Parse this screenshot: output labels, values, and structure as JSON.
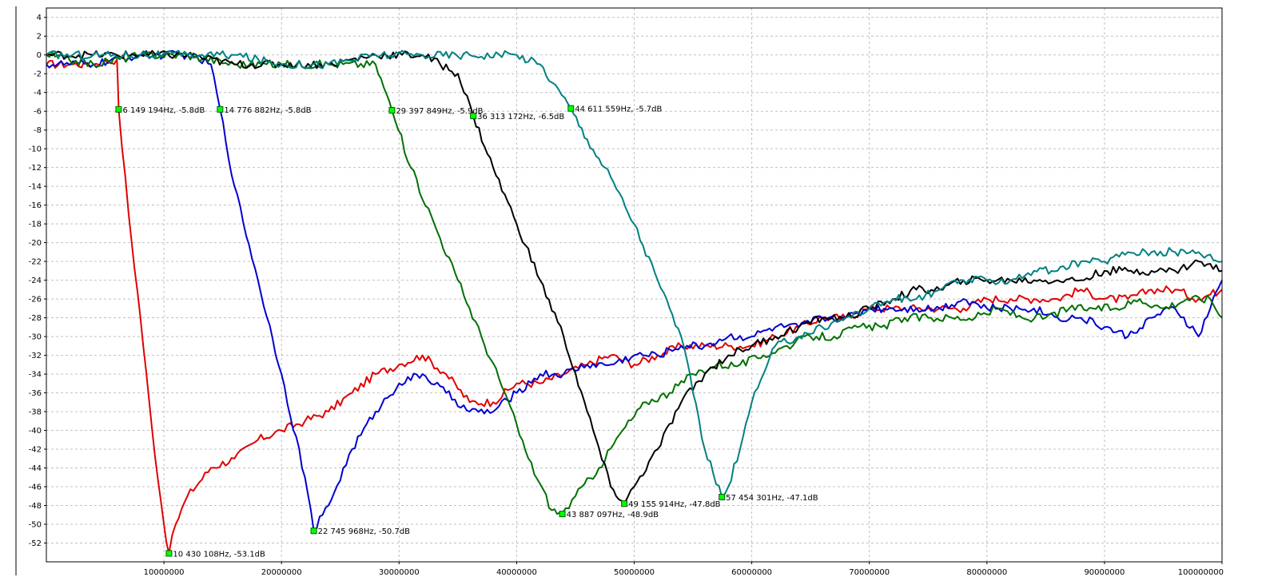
{
  "chart_data": {
    "type": "line",
    "title": "",
    "xlabel": "",
    "ylabel": "",
    "xlim": [
      0,
      100000000
    ],
    "ylim": [
      -54,
      5
    ],
    "grid": true,
    "x_ticks": [
      10000000,
      20000000,
      30000000,
      40000000,
      50000000,
      60000000,
      70000000,
      80000000,
      90000000,
      100000000
    ],
    "x_tick_labels": [
      "10000000",
      "20000000",
      "30000000",
      "40000000",
      "50000000",
      "60000000",
      "70000000",
      "80000000",
      "90000000",
      "100000000"
    ],
    "y_ticks": [
      4,
      2,
      0,
      -2,
      -4,
      -6,
      -8,
      -10,
      -12,
      -14,
      -16,
      -18,
      -20,
      -22,
      -24,
      -26,
      -28,
      -30,
      -32,
      -34,
      -36,
      -38,
      -40,
      -42,
      -44,
      -46,
      -48,
      -50,
      -52
    ],
    "series": [
      {
        "color": "#e00000",
        "x": [
          0,
          2000000,
          4000000,
          6000000,
          6149194,
          7000000,
          8000000,
          9000000,
          10000000,
          10430108,
          11000000,
          12000000,
          14000000,
          16000000,
          18000000,
          20000000,
          22000000,
          24000000,
          26000000,
          28000000,
          30000000,
          32000000,
          34000000,
          36000000,
          38000000,
          40000000,
          42000000,
          44000000,
          46000000,
          48000000,
          50000000,
          52000000,
          54000000,
          56000000,
          58000000,
          60000000,
          62000000,
          64000000,
          66000000,
          68000000,
          70000000,
          72000000,
          74000000,
          76000000,
          78000000,
          80000000,
          82000000,
          84000000,
          86000000,
          88000000,
          90000000,
          92000000,
          94000000,
          96000000,
          98000000,
          100000000
        ],
        "y": [
          -1,
          -1,
          -1,
          -0.5,
          -5.8,
          -17,
          -28,
          -40,
          -50,
          -53.1,
          -50,
          -47,
          -44,
          -43,
          -41,
          -40,
          -39,
          -38,
          -36,
          -34,
          -33,
          -32,
          -34,
          -37,
          -37,
          -35,
          -35,
          -34,
          -33,
          -32,
          -33,
          -32,
          -31,
          -31,
          -31,
          -31,
          -30,
          -29,
          -28,
          -28,
          -27,
          -27,
          -27,
          -27,
          -27,
          -26,
          -26,
          -26,
          -26,
          -25,
          -26,
          -26,
          -25,
          -25,
          -26,
          -25
        ]
      },
      {
        "color": "#0000d0",
        "x": [
          0,
          4000000,
          8000000,
          12000000,
          14000000,
          14776882,
          16000000,
          18000000,
          20000000,
          22000000,
          22745968,
          24000000,
          26000000,
          28000000,
          30000000,
          32000000,
          34000000,
          36000000,
          38000000,
          40000000,
          42000000,
          44000000,
          46000000,
          48000000,
          50000000,
          52000000,
          54000000,
          56000000,
          58000000,
          60000000,
          62000000,
          64000000,
          66000000,
          68000000,
          70000000,
          72000000,
          74000000,
          76000000,
          78000000,
          80000000,
          82000000,
          84000000,
          86000000,
          88000000,
          90000000,
          92000000,
          94000000,
          96000000,
          98000000,
          100000000
        ],
        "y": [
          -1,
          -1,
          0,
          0,
          -1,
          -5.8,
          -14,
          -24,
          -34,
          -45,
          -50.7,
          -48,
          -42,
          -38,
          -35,
          -34,
          -36,
          -38,
          -38,
          -36,
          -34,
          -34,
          -33,
          -33,
          -32,
          -32,
          -31,
          -31,
          -30,
          -30,
          -29,
          -29,
          -28,
          -28,
          -27,
          -27,
          -27,
          -27,
          -26,
          -27,
          -27,
          -27,
          -28,
          -28,
          -29,
          -30,
          -28,
          -27,
          -30,
          -24
        ]
      },
      {
        "color": "#007000",
        "x": [
          0,
          4000000,
          8000000,
          12000000,
          16000000,
          20000000,
          24000000,
          28000000,
          29397849,
          31000000,
          33000000,
          35000000,
          37000000,
          39000000,
          41000000,
          43000000,
          43887097,
          45000000,
          47000000,
          49000000,
          51000000,
          53000000,
          55000000,
          57000000,
          59000000,
          61000000,
          63000000,
          65000000,
          67000000,
          69000000,
          71000000,
          73000000,
          75000000,
          77000000,
          79000000,
          81000000,
          83000000,
          85000000,
          87000000,
          89000000,
          91000000,
          93000000,
          95000000,
          97000000,
          99000000,
          100000000
        ],
        "y": [
          0,
          -1,
          0,
          0,
          -1,
          -1,
          -1,
          -1,
          -5.9,
          -12,
          -18,
          -24,
          -30,
          -36,
          -43,
          -48.5,
          -48.9,
          -47,
          -44,
          -40,
          -37,
          -36,
          -34,
          -33,
          -33,
          -32,
          -31,
          -30,
          -30,
          -29,
          -29,
          -28,
          -28,
          -28,
          -28,
          -27,
          -28,
          -28,
          -27,
          -27,
          -27,
          -26,
          -27,
          -26,
          -26,
          -28
        ]
      },
      {
        "color": "#000000",
        "x": [
          0,
          4000000,
          8000000,
          12000000,
          16000000,
          20000000,
          24000000,
          28000000,
          32000000,
          35000000,
          36313172,
          38000000,
          40000000,
          42000000,
          44000000,
          46000000,
          48000000,
          49155914,
          50000000,
          52000000,
          54000000,
          56000000,
          58000000,
          60000000,
          62000000,
          64000000,
          66000000,
          68000000,
          70000000,
          72000000,
          74000000,
          76000000,
          78000000,
          80000000,
          82000000,
          84000000,
          86000000,
          88000000,
          90000000,
          92000000,
          94000000,
          96000000,
          98000000,
          100000000
        ],
        "y": [
          0,
          0,
          0,
          0,
          -1,
          -1,
          -1,
          0,
          0,
          -2,
          -6.5,
          -12,
          -18,
          -24,
          -30,
          -38,
          -46,
          -47.8,
          -46,
          -42,
          -37,
          -34,
          -32,
          -31,
          -30,
          -29,
          -28,
          -28,
          -27,
          -26,
          -25,
          -25,
          -24,
          -24,
          -24,
          -24,
          -24,
          -24,
          -23,
          -23,
          -23,
          -23,
          -22,
          -23
        ]
      },
      {
        "color": "#008080",
        "x": [
          0,
          4000000,
          8000000,
          12000000,
          16000000,
          20000000,
          24000000,
          28000000,
          32000000,
          36000000,
          40000000,
          42000000,
          44611559,
          46000000,
          48000000,
          50000000,
          52000000,
          54000000,
          55000000,
          56000000,
          57454301,
          58000000,
          59000000,
          60000000,
          61000000,
          62000000,
          64000000,
          66000000,
          68000000,
          70000000,
          72000000,
          74000000,
          76000000,
          78000000,
          80000000,
          82000000,
          84000000,
          86000000,
          88000000,
          90000000,
          92000000,
          94000000,
          96000000,
          98000000,
          100000000
        ],
        "y": [
          0,
          0,
          0,
          0,
          0,
          -1,
          -1,
          0,
          0,
          0,
          0,
          -1,
          -5.7,
          -9,
          -13,
          -18,
          -24,
          -30,
          -36,
          -42,
          -47.1,
          -46,
          -42,
          -37,
          -34,
          -31,
          -30,
          -29,
          -28,
          -27,
          -26,
          -26,
          -25,
          -24,
          -24,
          -24,
          -23,
          -23,
          -22,
          -22,
          -21,
          -21,
          -21,
          -21,
          -22
        ]
      }
    ],
    "markers": [
      {
        "x": 6149194,
        "y": -5.8,
        "label": "6 149 194Hz, -5.8dB"
      },
      {
        "x": 14776882,
        "y": -5.8,
        "label": "14 776 882Hz, -5.8dB"
      },
      {
        "x": 29397849,
        "y": -5.9,
        "label": "29 397 849Hz, -5.9dB"
      },
      {
        "x": 36313172,
        "y": -6.5,
        "label": "36 313 172Hz, -6.5dB"
      },
      {
        "x": 44611559,
        "y": -5.7,
        "label": "44 611 559Hz, -5.7dB"
      },
      {
        "x": 10430108,
        "y": -53.1,
        "label": "10 430 108Hz, -53.1dB"
      },
      {
        "x": 22745968,
        "y": -50.7,
        "label": "22 745 968Hz, -50.7dB"
      },
      {
        "x": 43887097,
        "y": -48.9,
        "label": "43 887 097Hz, -48.9dB"
      },
      {
        "x": 49155914,
        "y": -47.8,
        "label": "49 155 914Hz, -47.8dB"
      },
      {
        "x": 57454301,
        "y": -47.1,
        "label": "57 454 301Hz, -47.1dB"
      }
    ],
    "colors": {
      "background": "#ffffff",
      "grid": "#c0c0c0",
      "axis": "#000000",
      "marker_fill": "#00ff00"
    }
  }
}
